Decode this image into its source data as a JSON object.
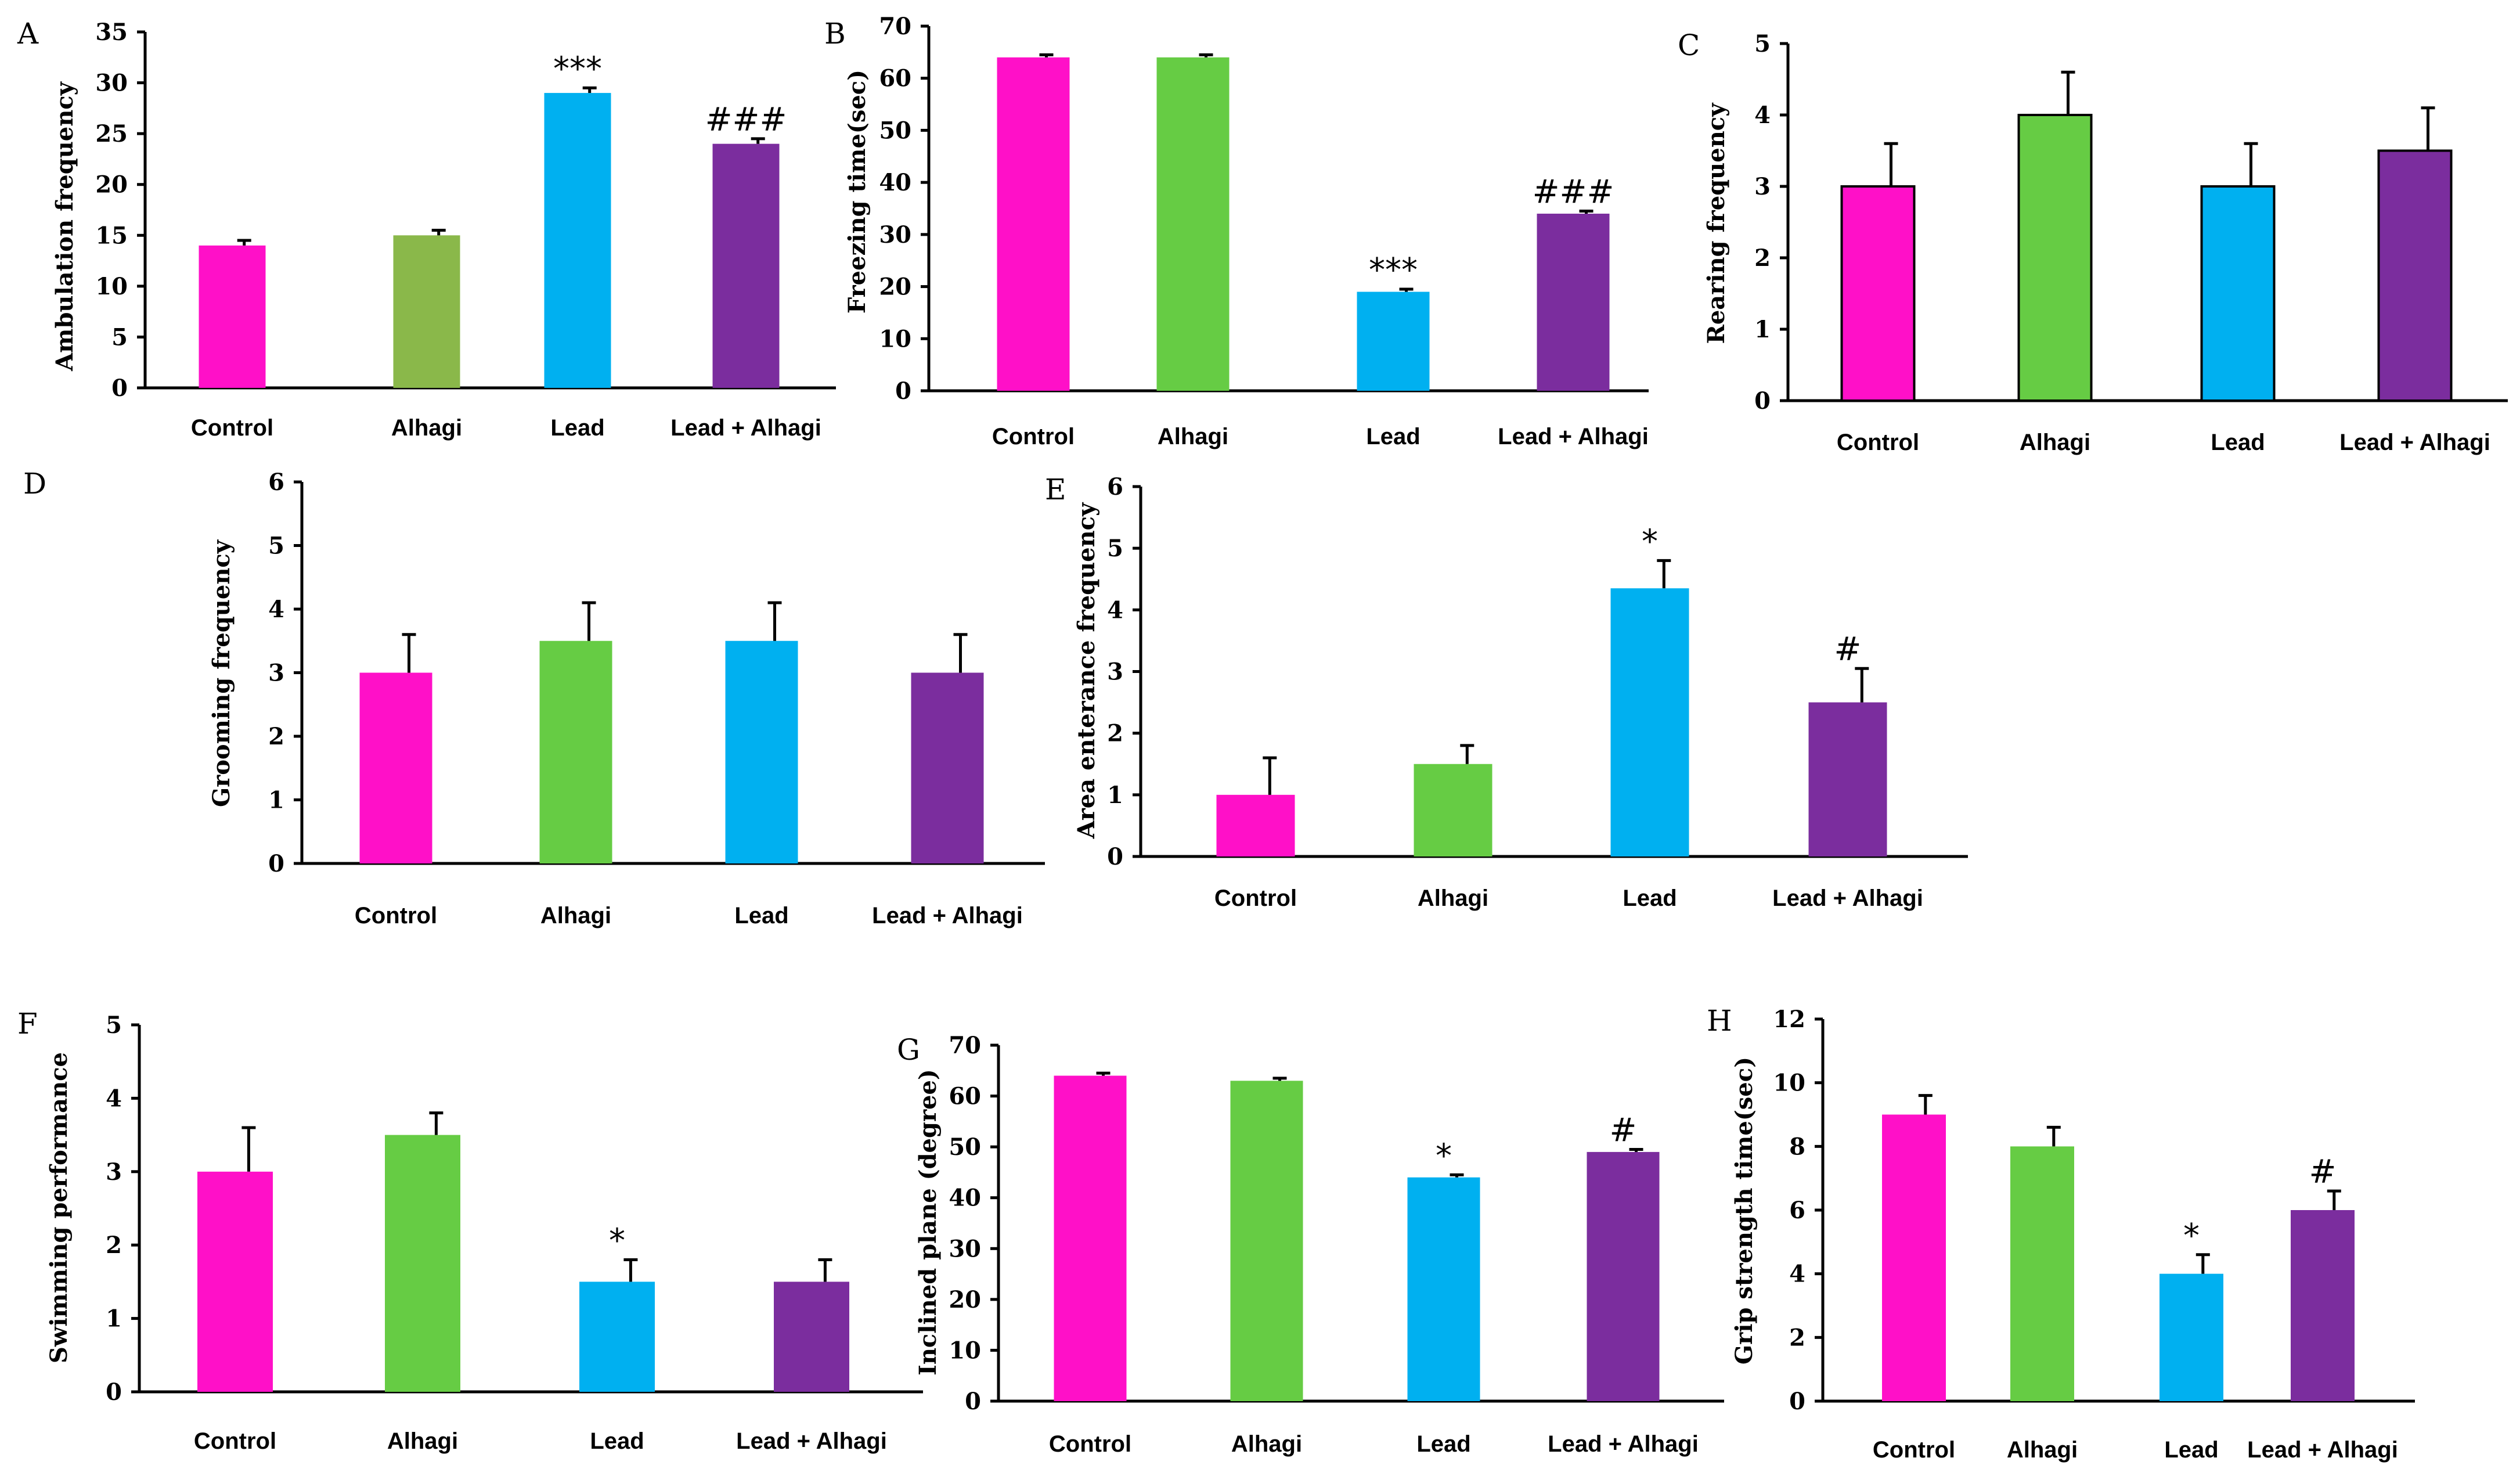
{
  "colors": {
    "control": "#ff10c8",
    "alhagi": "#66cc44",
    "alhagi_a": "#8ab84a",
    "lead": "#00b0f0",
    "lead_alhagi": "#7b2d9e"
  },
  "chart_data": [
    {
      "panel": "A",
      "type": "bar",
      "ylabel": "Ambulation frequency",
      "categories": [
        "Control",
        "Alhagi",
        "Lead",
        "Lead + Alhagi"
      ],
      "values": [
        14,
        15,
        29,
        24
      ],
      "errors": [
        0.5,
        0.5,
        0.5,
        0.5
      ],
      "annotations": [
        "",
        "",
        "***",
        "###"
      ],
      "ylim": [
        0,
        35
      ],
      "yticks": [
        0,
        5,
        10,
        15,
        20,
        25,
        30,
        35
      ]
    },
    {
      "panel": "B",
      "type": "bar",
      "ylabel": "Freezing time(sec)",
      "categories": [
        "Control",
        "Alhagi",
        "Lead",
        "Lead + Alhagi"
      ],
      "values": [
        64,
        64,
        19,
        34
      ],
      "errors": [
        0.5,
        0.5,
        0.5,
        0.5
      ],
      "annotations": [
        "",
        "",
        "***",
        "###"
      ],
      "ylim": [
        0,
        70
      ],
      "yticks": [
        0,
        10,
        20,
        30,
        40,
        50,
        60,
        70
      ]
    },
    {
      "panel": "C",
      "type": "bar",
      "ylabel": "Rearing frequency",
      "categories": [
        "Control",
        "Alhagi",
        "Lead",
        "Lead + Alhagi"
      ],
      "values": [
        3,
        4,
        3,
        3.5
      ],
      "errors": [
        0.6,
        0.6,
        0.6,
        0.6
      ],
      "annotations": [
        "",
        "",
        "",
        ""
      ],
      "ylim": [
        0,
        5
      ],
      "yticks": [
        0,
        1,
        2,
        3,
        4,
        5
      ]
    },
    {
      "panel": "D",
      "type": "bar",
      "ylabel": "Grooming frequency",
      "categories": [
        "Control",
        "Alhagi",
        "Lead",
        "Lead + Alhagi"
      ],
      "values": [
        3,
        3.5,
        3.5,
        3
      ],
      "errors": [
        0.6,
        0.6,
        0.6,
        0.6
      ],
      "annotations": [
        "",
        "",
        "",
        ""
      ],
      "ylim": [
        0,
        6
      ],
      "yticks": [
        0,
        1,
        2,
        3,
        4,
        5,
        6
      ]
    },
    {
      "panel": "E",
      "type": "bar",
      "ylabel": "Area enterance frequency",
      "categories": [
        "Control",
        "Alhagi",
        "Lead",
        "Lead + Alhagi"
      ],
      "values": [
        1,
        1.5,
        4.35,
        2.5
      ],
      "errors": [
        0.6,
        0.3,
        0.45,
        0.55
      ],
      "annotations": [
        "",
        "",
        "*",
        "#"
      ],
      "ylim": [
        0,
        6
      ],
      "yticks": [
        0,
        1,
        2,
        3,
        4,
        5,
        6
      ]
    },
    {
      "panel": "F",
      "type": "bar",
      "ylabel": "Swimming performance",
      "categories": [
        "Control",
        "Alhagi",
        "Lead",
        "Lead + Alhagi"
      ],
      "values": [
        3,
        3.5,
        1.5,
        1.5
      ],
      "errors": [
        0.6,
        0.3,
        0.3,
        0.3
      ],
      "annotations": [
        "",
        "",
        "*",
        ""
      ],
      "ylim": [
        0,
        5
      ],
      "yticks": [
        0,
        1,
        2,
        3,
        4,
        5
      ]
    },
    {
      "panel": "G",
      "type": "bar",
      "ylabel": "Inclined plane (degree)",
      "categories": [
        "Control",
        "Alhagi",
        "Lead",
        "Lead + Alhagi"
      ],
      "values": [
        64,
        63,
        44,
        49
      ],
      "errors": [
        0.5,
        0.5,
        0.5,
        0.5
      ],
      "annotations": [
        "",
        "",
        "*",
        "#"
      ],
      "ylim": [
        0,
        70
      ],
      "yticks": [
        0,
        10,
        20,
        30,
        40,
        50,
        60,
        70
      ]
    },
    {
      "panel": "H",
      "type": "bar",
      "ylabel": "Grip strength time(sec)",
      "categories": [
        "Control",
        "Alhagi",
        "Lead",
        "Lead + Alhagi"
      ],
      "values": [
        9,
        8,
        4,
        6
      ],
      "errors": [
        0.6,
        0.6,
        0.6,
        0.6
      ],
      "annotations": [
        "",
        "",
        "*",
        "#"
      ],
      "ylim": [
        0,
        12
      ],
      "yticks": [
        0,
        2,
        4,
        6,
        8,
        10,
        12
      ]
    }
  ]
}
